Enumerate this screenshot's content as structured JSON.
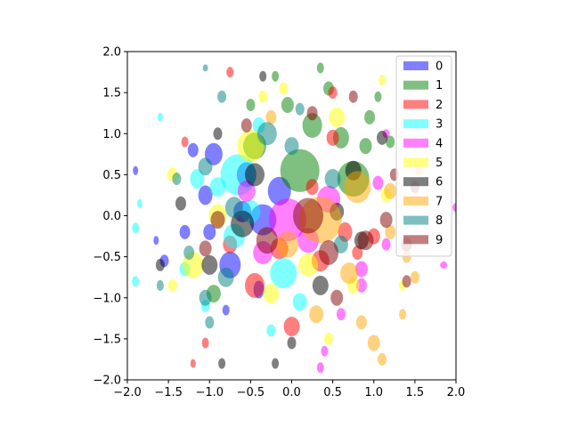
{
  "chart_data": {
    "type": "scatter",
    "title": "",
    "xlabel": "",
    "ylabel": "",
    "xlim": [
      -2.0,
      2.0
    ],
    "ylim": [
      -2.0,
      2.0
    ],
    "xticks": [
      "−2.0",
      "−1.5",
      "−1.0",
      "−0.5",
      "0.0",
      "0.5",
      "1.0",
      "1.5",
      "2.0"
    ],
    "yticks": [
      "−2.0",
      "−1.5",
      "−1.0",
      "−0.5",
      "0.0",
      "0.5",
      "1.0",
      "1.5",
      "2.0"
    ],
    "grid": false,
    "legend_position": "top-right",
    "marker": "ellipse",
    "alpha": 0.5,
    "series": [
      {
        "name": "0",
        "color": "#0000ff",
        "points": [
          [
            -0.95,
            0.75,
            20,
            25
          ],
          [
            -0.55,
            0.5,
            22,
            28
          ],
          [
            -0.35,
            -0.05,
            30,
            35
          ],
          [
            -0.75,
            -0.6,
            24,
            30
          ],
          [
            -1.05,
            0.25,
            16,
            22
          ],
          [
            -1.55,
            -0.55,
            10,
            14
          ],
          [
            -1.3,
            -0.2,
            12,
            16
          ],
          [
            -0.15,
            0.3,
            26,
            32
          ],
          [
            -0.6,
            0.05,
            20,
            24
          ],
          [
            -1.9,
            0.55,
            6,
            10
          ],
          [
            -1.2,
            0.8,
            12,
            16
          ],
          [
            -0.4,
            -0.9,
            12,
            20
          ],
          [
            -1.65,
            -0.3,
            6,
            10
          ],
          [
            -0.8,
            -1.15,
            8,
            12
          ],
          [
            -1.0,
            -0.2,
            14,
            18
          ]
        ]
      },
      {
        "name": "1",
        "color": "#008000",
        "points": [
          [
            0.1,
            0.55,
            44,
            48
          ],
          [
            0.25,
            1.1,
            22,
            28
          ],
          [
            0.6,
            0.95,
            18,
            24
          ],
          [
            0.75,
            0.45,
            36,
            40
          ],
          [
            -0.05,
            1.35,
            14,
            18
          ],
          [
            0.45,
            1.55,
            12,
            16
          ],
          [
            0.95,
            1.2,
            12,
            16
          ],
          [
            -0.45,
            0.85,
            26,
            30
          ],
          [
            -0.95,
            -0.95,
            16,
            20
          ],
          [
            1.05,
            1.45,
            8,
            12
          ],
          [
            0.35,
            1.8,
            8,
            12
          ],
          [
            -0.2,
            1.7,
            8,
            12
          ],
          [
            0.9,
            0.85,
            14,
            18
          ],
          [
            1.2,
            0.9,
            10,
            14
          ],
          [
            -0.5,
            1.35,
            10,
            14
          ]
        ]
      },
      {
        "name": "2",
        "color": "#ff0000",
        "points": [
          [
            -0.45,
            -0.85,
            22,
            28
          ],
          [
            0.0,
            -1.35,
            18,
            22
          ],
          [
            0.5,
            0.95,
            14,
            18
          ],
          [
            -0.15,
            -0.4,
            20,
            24
          ],
          [
            0.35,
            -0.55,
            20,
            24
          ],
          [
            -1.05,
            -1.55,
            8,
            12
          ],
          [
            -1.2,
            -1.8,
            6,
            10
          ],
          [
            0.65,
            -0.2,
            16,
            22
          ],
          [
            -0.75,
            -0.35,
            16,
            20
          ],
          [
            0.5,
            1.5,
            10,
            14
          ],
          [
            -0.75,
            1.75,
            8,
            12
          ],
          [
            0.25,
            0.35,
            14,
            18
          ],
          [
            0.8,
            -0.45,
            12,
            16
          ],
          [
            -1.3,
            0.9,
            8,
            12
          ],
          [
            1.0,
            -0.25,
            14,
            18
          ]
        ]
      },
      {
        "name": "3",
        "color": "#00ffff",
        "points": [
          [
            -0.65,
            0.5,
            40,
            46
          ],
          [
            -0.1,
            -0.7,
            30,
            34
          ],
          [
            -0.7,
            -0.25,
            24,
            28
          ],
          [
            -1.15,
            0.45,
            16,
            22
          ],
          [
            -1.9,
            -0.15,
            8,
            12
          ],
          [
            -1.9,
            -0.8,
            8,
            12
          ],
          [
            -1.6,
            1.2,
            6,
            10
          ],
          [
            -0.4,
            1.1,
            14,
            18
          ],
          [
            0.1,
            -1.05,
            16,
            20
          ],
          [
            -1.3,
            -0.65,
            12,
            16
          ],
          [
            -0.9,
            0.35,
            18,
            22
          ],
          [
            -0.25,
            -1.4,
            10,
            14
          ],
          [
            -0.5,
            0.05,
            22,
            26
          ],
          [
            -1.05,
            -1.1,
            10,
            14
          ],
          [
            -1.85,
            0.15,
            6,
            10
          ]
        ]
      },
      {
        "name": "4",
        "color": "#ff00ff",
        "points": [
          [
            -0.05,
            -0.05,
            42,
            48
          ],
          [
            0.45,
            0.2,
            26,
            30
          ],
          [
            0.2,
            -0.3,
            24,
            28
          ],
          [
            -0.35,
            -0.45,
            22,
            26
          ],
          [
            0.85,
            -0.85,
            12,
            16
          ],
          [
            1.05,
            0.4,
            12,
            16
          ],
          [
            0.4,
            -1.65,
            8,
            12
          ],
          [
            1.15,
            -0.35,
            10,
            14
          ],
          [
            -0.55,
            0.3,
            20,
            24
          ],
          [
            0.6,
            -1.2,
            10,
            14
          ],
          [
            0.85,
            -0.65,
            14,
            18
          ],
          [
            1.15,
            1.0,
            8,
            10
          ],
          [
            0.35,
            -1.85,
            8,
            12
          ],
          [
            1.85,
            -0.6,
            8,
            8
          ],
          [
            2.0,
            0.1,
            8,
            10
          ]
        ]
      },
      {
        "name": "5",
        "color": "#ffff00",
        "points": [
          [
            -0.5,
            0.85,
            30,
            36
          ],
          [
            0.55,
            1.2,
            18,
            22
          ],
          [
            -1.2,
            -0.6,
            24,
            30
          ],
          [
            -0.25,
            -0.95,
            18,
            22
          ],
          [
            -0.9,
            0.0,
            20,
            26
          ],
          [
            -1.45,
            0.5,
            12,
            16
          ],
          [
            0.2,
            -0.6,
            22,
            26
          ],
          [
            -0.1,
            1.55,
            10,
            14
          ],
          [
            0.75,
            -0.85,
            14,
            18
          ],
          [
            1.15,
            0.25,
            12,
            16
          ],
          [
            -0.35,
            1.45,
            10,
            14
          ],
          [
            0.45,
            -1.5,
            10,
            14
          ],
          [
            1.35,
            -0.85,
            8,
            12
          ],
          [
            -1.45,
            -0.85,
            10,
            14
          ],
          [
            1.1,
            1.65,
            8,
            12
          ]
        ]
      },
      {
        "name": "6",
        "color": "#000000",
        "points": [
          [
            -0.6,
            -0.1,
            26,
            30
          ],
          [
            0.35,
            -0.85,
            18,
            22
          ],
          [
            -1.0,
            -0.6,
            18,
            22
          ],
          [
            -0.45,
            0.5,
            22,
            26
          ],
          [
            0.55,
            0.05,
            16,
            20
          ],
          [
            -1.35,
            0.15,
            12,
            16
          ],
          [
            0.85,
            -0.3,
            16,
            20
          ],
          [
            1.1,
            0.95,
            12,
            16
          ],
          [
            -0.9,
            1.0,
            10,
            14
          ],
          [
            -1.6,
            -0.6,
            10,
            14
          ],
          [
            0.0,
            -1.55,
            10,
            14
          ],
          [
            0.75,
            0.55,
            18,
            22
          ],
          [
            -0.2,
            -1.8,
            8,
            12
          ],
          [
            -0.85,
            -1.8,
            8,
            12
          ],
          [
            -0.35,
            1.7,
            8,
            12
          ]
        ]
      },
      {
        "name": "7",
        "color": "#ffa500",
        "points": [
          [
            0.35,
            -0.05,
            48,
            52
          ],
          [
            0.8,
            0.35,
            30,
            36
          ],
          [
            -0.05,
            -0.35,
            24,
            30
          ],
          [
            0.7,
            -0.7,
            20,
            24
          ],
          [
            1.0,
            -1.55,
            14,
            18
          ],
          [
            1.2,
            0.3,
            14,
            18
          ],
          [
            0.3,
            -1.2,
            16,
            20
          ],
          [
            1.5,
            -0.75,
            10,
            14
          ],
          [
            -0.25,
            1.2,
            12,
            16
          ],
          [
            1.55,
            0.55,
            8,
            12
          ],
          [
            1.35,
            -1.2,
            8,
            12
          ],
          [
            0.85,
            -1.3,
            12,
            16
          ],
          [
            1.1,
            -1.75,
            10,
            14
          ],
          [
            1.2,
            -0.2,
            12,
            16
          ],
          [
            1.4,
            -0.5,
            10,
            14
          ]
        ]
      },
      {
        "name": "8",
        "color": "#008080",
        "points": [
          [
            -0.3,
            1.0,
            22,
            26
          ],
          [
            0.5,
            0.45,
            18,
            22
          ],
          [
            -1.05,
            0.6,
            16,
            20
          ],
          [
            -0.8,
            -0.75,
            18,
            22
          ],
          [
            -0.7,
            0.1,
            20,
            24
          ],
          [
            0.0,
            0.85,
            16,
            20
          ],
          [
            -1.25,
            -0.45,
            12,
            16
          ],
          [
            0.6,
            -0.35,
            16,
            20
          ],
          [
            -1.4,
            0.45,
            10,
            14
          ],
          [
            -1.05,
            -1.0,
            14,
            18
          ],
          [
            -1.0,
            -1.3,
            10,
            14
          ],
          [
            -0.85,
            1.45,
            10,
            14
          ],
          [
            0.1,
            1.3,
            10,
            14
          ],
          [
            -1.6,
            -0.85,
            8,
            12
          ],
          [
            -1.05,
            1.8,
            6,
            8
          ]
        ]
      },
      {
        "name": "9",
        "color": "#800000",
        "points": [
          [
            0.2,
            0.0,
            34,
            40
          ],
          [
            -0.3,
            -0.3,
            24,
            30
          ],
          [
            0.45,
            -0.45,
            22,
            28
          ],
          [
            0.9,
            -0.3,
            18,
            22
          ],
          [
            -0.9,
            -0.05,
            16,
            20
          ],
          [
            1.15,
            -0.05,
            14,
            18
          ],
          [
            0.25,
            1.25,
            12,
            16
          ],
          [
            1.4,
            -0.35,
            12,
            16
          ],
          [
            0.55,
            -1.0,
            14,
            18
          ],
          [
            1.4,
            -0.8,
            10,
            14
          ],
          [
            -1.05,
            -0.4,
            14,
            18
          ],
          [
            -0.55,
            1.1,
            12,
            16
          ],
          [
            1.25,
            0.5,
            10,
            14
          ],
          [
            0.75,
            1.45,
            10,
            14
          ],
          [
            1.5,
            0.35,
            10,
            14
          ]
        ]
      }
    ]
  }
}
